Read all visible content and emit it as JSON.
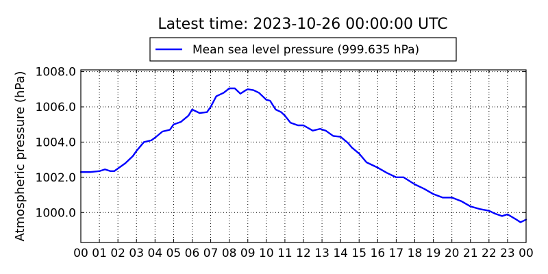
{
  "chart_data": {
    "type": "line",
    "title": "Latest time: 2023-10-26 00:00:00 UTC",
    "xlabel": "",
    "ylabel": "Atmospheric pressure (hPa)",
    "xlim": [
      0,
      24
    ],
    "ylim": [
      998.3,
      1008.1
    ],
    "x_ticks": [
      0,
      1,
      2,
      3,
      4,
      5,
      6,
      7,
      8,
      9,
      10,
      11,
      12,
      13,
      14,
      15,
      16,
      17,
      18,
      19,
      20,
      21,
      22,
      23,
      24
    ],
    "x_tick_labels": [
      "00",
      "01",
      "02",
      "03",
      "04",
      "05",
      "06",
      "07",
      "08",
      "09",
      "10",
      "11",
      "12",
      "13",
      "14",
      "15",
      "16",
      "17",
      "18",
      "19",
      "20",
      "21",
      "22",
      "23",
      "00"
    ],
    "y_ticks": [
      1000.0,
      1002.0,
      1004.0,
      1006.0,
      1008.0
    ],
    "y_tick_labels": [
      "1000.0",
      "1002.0",
      "1004.0",
      "1006.0",
      "1008.0"
    ],
    "grid": true,
    "legend_position": "top-center",
    "series": [
      {
        "name": "Mean sea level pressure (999.635 hPa)",
        "color": "#0000ff",
        "x": [
          0.0,
          0.5,
          1.0,
          1.3,
          1.6,
          1.8,
          2.0,
          2.4,
          2.8,
          3.0,
          3.4,
          3.8,
          4.0,
          4.4,
          4.8,
          5.0,
          5.4,
          5.8,
          6.0,
          6.4,
          6.8,
          7.0,
          7.3,
          7.7,
          8.0,
          8.3,
          8.6,
          8.9,
          9.0,
          9.3,
          9.6,
          10.0,
          10.2,
          10.5,
          10.8,
          11.0,
          11.3,
          11.7,
          12.0,
          12.5,
          12.9,
          13.2,
          13.6,
          14.0,
          14.4,
          14.6,
          15.0,
          15.4,
          15.8,
          16.0,
          16.5,
          17.0,
          17.4,
          18.0,
          18.5,
          19.0,
          19.5,
          20.0,
          20.5,
          21.0,
          21.5,
          22.0,
          22.3,
          22.7,
          23.0,
          23.4,
          23.7,
          24.0
        ],
        "y": [
          1002.3,
          1002.3,
          1002.35,
          1002.45,
          1002.35,
          1002.35,
          1002.5,
          1002.8,
          1003.2,
          1003.5,
          1004.0,
          1004.1,
          1004.25,
          1004.6,
          1004.7,
          1005.0,
          1005.15,
          1005.5,
          1005.85,
          1005.65,
          1005.7,
          1006.0,
          1006.6,
          1006.8,
          1007.05,
          1007.05,
          1006.75,
          1006.95,
          1007.0,
          1006.95,
          1006.8,
          1006.4,
          1006.35,
          1005.85,
          1005.7,
          1005.5,
          1005.1,
          1004.95,
          1004.95,
          1004.65,
          1004.75,
          1004.65,
          1004.35,
          1004.3,
          1003.95,
          1003.7,
          1003.35,
          1002.85,
          1002.65,
          1002.55,
          1002.25,
          1002.0,
          1002.0,
          1001.6,
          1001.35,
          1001.05,
          1000.85,
          1000.85,
          1000.65,
          1000.35,
          1000.2,
          1000.1,
          999.95,
          999.8,
          999.9,
          999.65,
          999.45,
          999.6
        ]
      }
    ]
  }
}
